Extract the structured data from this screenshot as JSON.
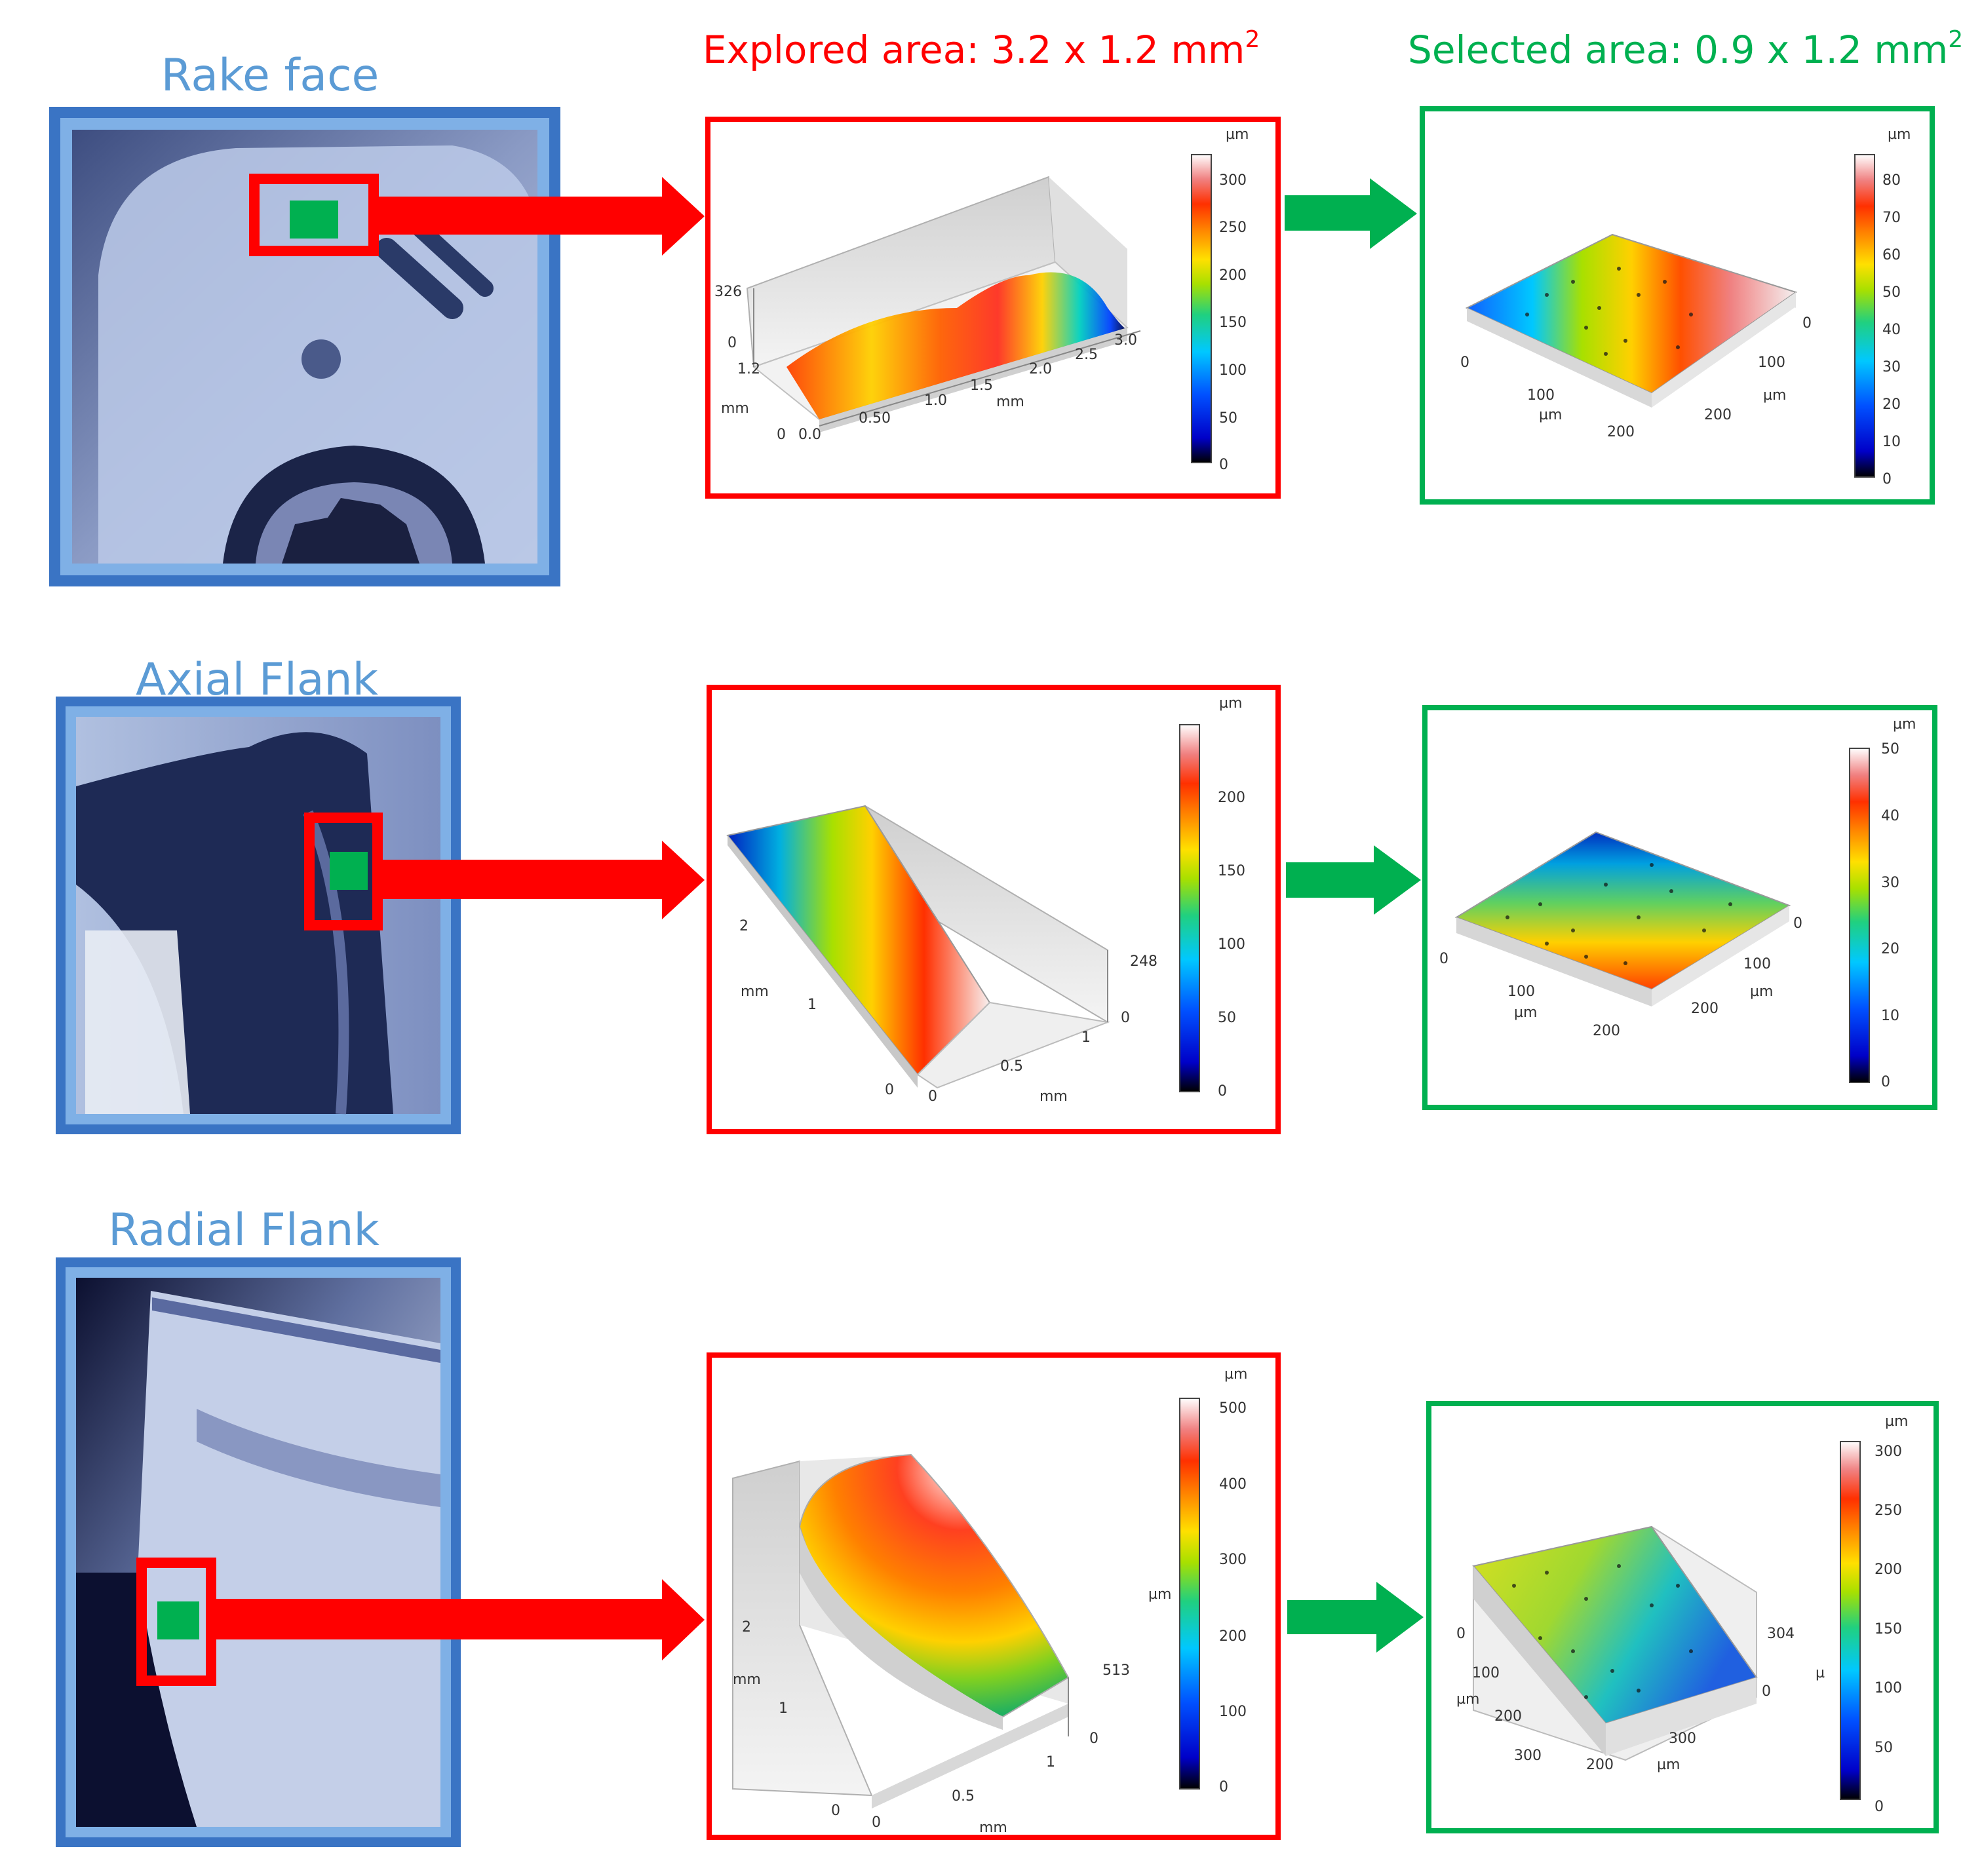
{
  "headers": {
    "explored": {
      "text": "Explored area: 3.2 x 1.2 mm",
      "sup": "2",
      "color": "#ff0000"
    },
    "selected": {
      "text": "Selected area: 0.9 x 1.2 mm",
      "sup": "2",
      "color": "#00b050"
    }
  },
  "label_color": "#5b9bd5",
  "rows": [
    {
      "label": "Rake face",
      "explored_plot": {
        "unit": "µm",
        "colorbar_ticks": [
          "300",
          "250",
          "200",
          "150",
          "100",
          "50",
          "0"
        ],
        "z_ticks": [
          "326",
          "0"
        ],
        "x_ticks": [
          "0.0",
          "0.50",
          "1.0",
          "1.5",
          "2.0",
          "2.5",
          "3.0"
        ],
        "x_unit": "mm",
        "y_ticks": [
          "0",
          "1.2"
        ],
        "y_unit": "mm"
      },
      "selected_plot": {
        "unit": "µm",
        "colorbar_ticks": [
          "80",
          "70",
          "60",
          "50",
          "40",
          "30",
          "20",
          "10",
          "0"
        ],
        "x_ticks": [
          "0",
          "100",
          "200"
        ],
        "x_unit": "µm",
        "y_ticks": [
          "0",
          "100",
          "200"
        ],
        "y_unit": "µm"
      }
    },
    {
      "label": "Axial Flank",
      "explored_plot": {
        "unit": "µm",
        "colorbar_ticks": [
          "200",
          "150",
          "100",
          "50",
          "0"
        ],
        "z_ticks": [
          "248",
          "0"
        ],
        "x_ticks": [
          "0",
          "0.5",
          "1"
        ],
        "x_unit": "mm",
        "y_ticks": [
          "0",
          "1",
          "2"
        ],
        "y_unit": "mm"
      },
      "selected_plot": {
        "unit": "µm",
        "colorbar_ticks": [
          "50",
          "40",
          "30",
          "20",
          "10",
          "0"
        ],
        "x_ticks": [
          "0",
          "100",
          "200"
        ],
        "x_unit": "µm",
        "y_ticks": [
          "0",
          "100",
          "200"
        ],
        "y_unit": "µm"
      }
    },
    {
      "label": "Radial Flank",
      "explored_plot": {
        "unit": "µm",
        "side_unit": "µm",
        "colorbar_ticks": [
          "500",
          "400",
          "300",
          "200",
          "100",
          "0"
        ],
        "z_ticks": [
          "513",
          "0"
        ],
        "x_ticks": [
          "0",
          "0.5",
          "1"
        ],
        "x_unit": "mm",
        "y_ticks": [
          "0",
          "1",
          "2"
        ],
        "y_unit": "mm"
      },
      "selected_plot": {
        "unit": "µm",
        "side_unit": "µ",
        "colorbar_ticks": [
          "300",
          "250",
          "200",
          "150",
          "100",
          "50",
          "0"
        ],
        "z_ticks": [
          "304",
          "0"
        ],
        "x_ticks": [
          "200",
          "300"
        ],
        "x_unit": "µm",
        "y_ticks": [
          "0",
          "100",
          "200",
          "300"
        ],
        "y_unit": "µm"
      }
    }
  ]
}
